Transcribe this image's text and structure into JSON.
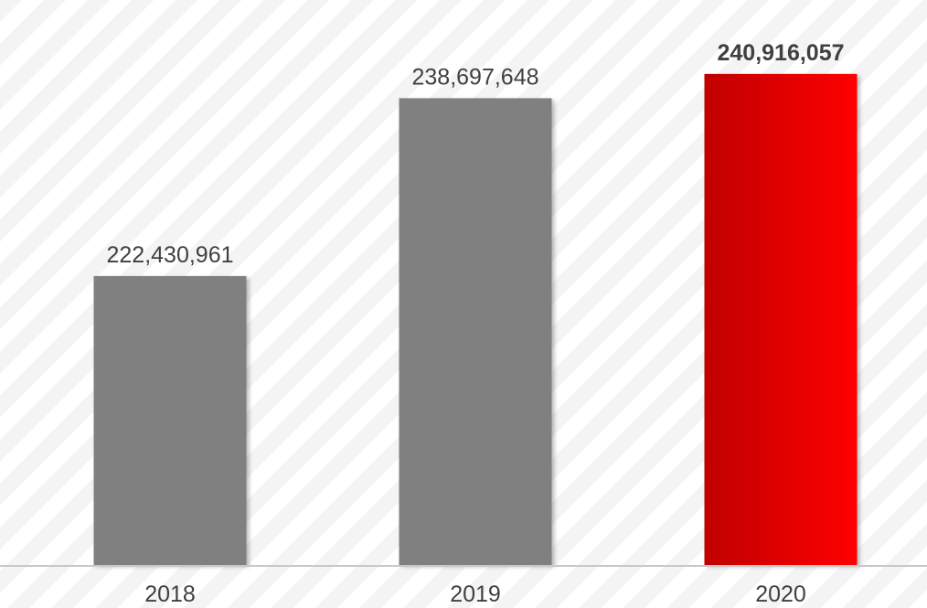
{
  "chart_data": {
    "type": "bar",
    "categories": [
      "2018",
      "2019",
      "2020"
    ],
    "values": [
      222430961,
      238697648,
      240916057
    ],
    "value_labels": [
      "222,430,961",
      "238,697,648",
      "240,916,057"
    ],
    "highlight_index": 2,
    "ylim": [
      196000000,
      244000000
    ],
    "grid": false,
    "colors": {
      "default_bar": "#808080",
      "highlight_start": "#c00000",
      "highlight_end": "#ff0000",
      "label_text": "#404040",
      "baseline": "#c8c8c8",
      "stripe": "#f4f4f4"
    }
  }
}
